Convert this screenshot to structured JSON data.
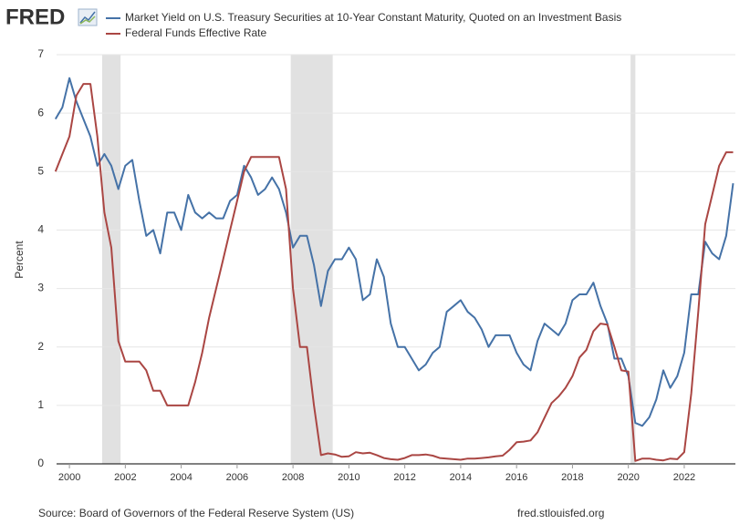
{
  "chart_data": {
    "type": "line",
    "logo": "FRED",
    "y_label": "Percent",
    "source": "Source: Board of Governors of the Federal Reserve System (US)",
    "site": "fred.stlouisfed.org",
    "xlim": [
      1999.54,
      2023.83
    ],
    "xticks": [
      2000,
      2002,
      2004,
      2006,
      2008,
      2010,
      2012,
      2014,
      2016,
      2018,
      2020,
      2022
    ],
    "ylim": [
      0,
      7
    ],
    "yticks": [
      0,
      1,
      2,
      3,
      4,
      5,
      6,
      7
    ],
    "grid": true,
    "recessions": [
      [
        2001.17,
        2001.83
      ],
      [
        2007.92,
        2009.42
      ],
      [
        2020.08,
        2020.25
      ]
    ],
    "x": [
      1999.5,
      1999.75,
      2000,
      2000.25,
      2000.5,
      2000.75,
      2001,
      2001.25,
      2001.5,
      2001.75,
      2002,
      2002.25,
      2002.5,
      2002.75,
      2003,
      2003.25,
      2003.5,
      2003.75,
      2004,
      2004.25,
      2004.5,
      2004.75,
      2005,
      2005.25,
      2005.5,
      2005.75,
      2006,
      2006.25,
      2006.5,
      2006.75,
      2007,
      2007.25,
      2007.5,
      2007.75,
      2008,
      2008.25,
      2008.5,
      2008.75,
      2009,
      2009.25,
      2009.5,
      2009.75,
      2010,
      2010.25,
      2010.5,
      2010.75,
      2011,
      2011.25,
      2011.5,
      2011.75,
      2012,
      2012.25,
      2012.5,
      2012.75,
      2013,
      2013.25,
      2013.5,
      2013.75,
      2014,
      2014.25,
      2014.5,
      2014.75,
      2015,
      2015.25,
      2015.5,
      2015.75,
      2016,
      2016.25,
      2016.5,
      2016.75,
      2017,
      2017.25,
      2017.5,
      2017.75,
      2018,
      2018.25,
      2018.5,
      2018.75,
      2019,
      2019.25,
      2019.5,
      2019.75,
      2020,
      2020.25,
      2020.5,
      2020.75,
      2021,
      2021.25,
      2021.5,
      2021.75,
      2022,
      2022.25,
      2022.5,
      2022.75,
      2023,
      2023.25,
      2023.5,
      2023.75
    ],
    "series": [
      {
        "name": "Market Yield on U.S. Treasury Securities at 10-Year Constant Maturity, Quoted on an Investment Basis",
        "color": "#4572a7",
        "values": [
          5.9,
          6.1,
          6.6,
          6.2,
          5.9,
          5.6,
          5.1,
          5.3,
          5.1,
          4.7,
          5.1,
          5.2,
          4.5,
          3.9,
          4.0,
          3.6,
          4.3,
          4.3,
          4.0,
          4.6,
          4.3,
          4.2,
          4.3,
          4.2,
          4.2,
          4.5,
          4.6,
          5.1,
          4.9,
          4.6,
          4.7,
          4.9,
          4.7,
          4.3,
          3.7,
          3.9,
          3.9,
          3.4,
          2.7,
          3.3,
          3.5,
          3.5,
          3.7,
          3.5,
          2.8,
          2.9,
          3.5,
          3.2,
          2.4,
          2.0,
          2.0,
          1.8,
          1.6,
          1.7,
          1.9,
          2.0,
          2.6,
          2.7,
          2.8,
          2.6,
          2.5,
          2.3,
          2.0,
          2.2,
          2.2,
          2.2,
          1.9,
          1.7,
          1.6,
          2.1,
          2.4,
          2.3,
          2.2,
          2.4,
          2.8,
          2.9,
          2.9,
          3.1,
          2.7,
          2.4,
          1.8,
          1.8,
          1.5,
          0.7,
          0.65,
          0.8,
          1.1,
          1.6,
          1.3,
          1.5,
          1.9,
          2.9,
          2.9,
          3.8,
          3.6,
          3.5,
          3.9,
          4.8
        ]
      },
      {
        "name": "Federal Funds Effective Rate",
        "color": "#aa4643",
        "values": [
          5.0,
          5.3,
          5.6,
          6.3,
          6.5,
          6.5,
          5.6,
          4.3,
          3.7,
          2.1,
          1.75,
          1.75,
          1.75,
          1.6,
          1.25,
          1.25,
          1.0,
          1.0,
          1.0,
          1.0,
          1.4,
          1.9,
          2.5,
          3.0,
          3.5,
          4.0,
          4.5,
          5.0,
          5.25,
          5.25,
          5.25,
          5.25,
          5.25,
          4.7,
          3.0,
          2.0,
          2.0,
          1.0,
          0.15,
          0.18,
          0.16,
          0.12,
          0.13,
          0.2,
          0.18,
          0.19,
          0.15,
          0.1,
          0.08,
          0.07,
          0.1,
          0.15,
          0.15,
          0.16,
          0.14,
          0.1,
          0.09,
          0.08,
          0.07,
          0.09,
          0.09,
          0.1,
          0.11,
          0.13,
          0.14,
          0.24,
          0.37,
          0.38,
          0.4,
          0.54,
          0.79,
          1.04,
          1.15,
          1.3,
          1.5,
          1.82,
          1.95,
          2.27,
          2.4,
          2.38,
          2.0,
          1.6,
          1.58,
          0.05,
          0.09,
          0.09,
          0.07,
          0.06,
          0.09,
          0.08,
          0.2,
          1.2,
          2.6,
          4.1,
          4.6,
          5.1,
          5.33,
          5.33
        ]
      }
    ]
  }
}
